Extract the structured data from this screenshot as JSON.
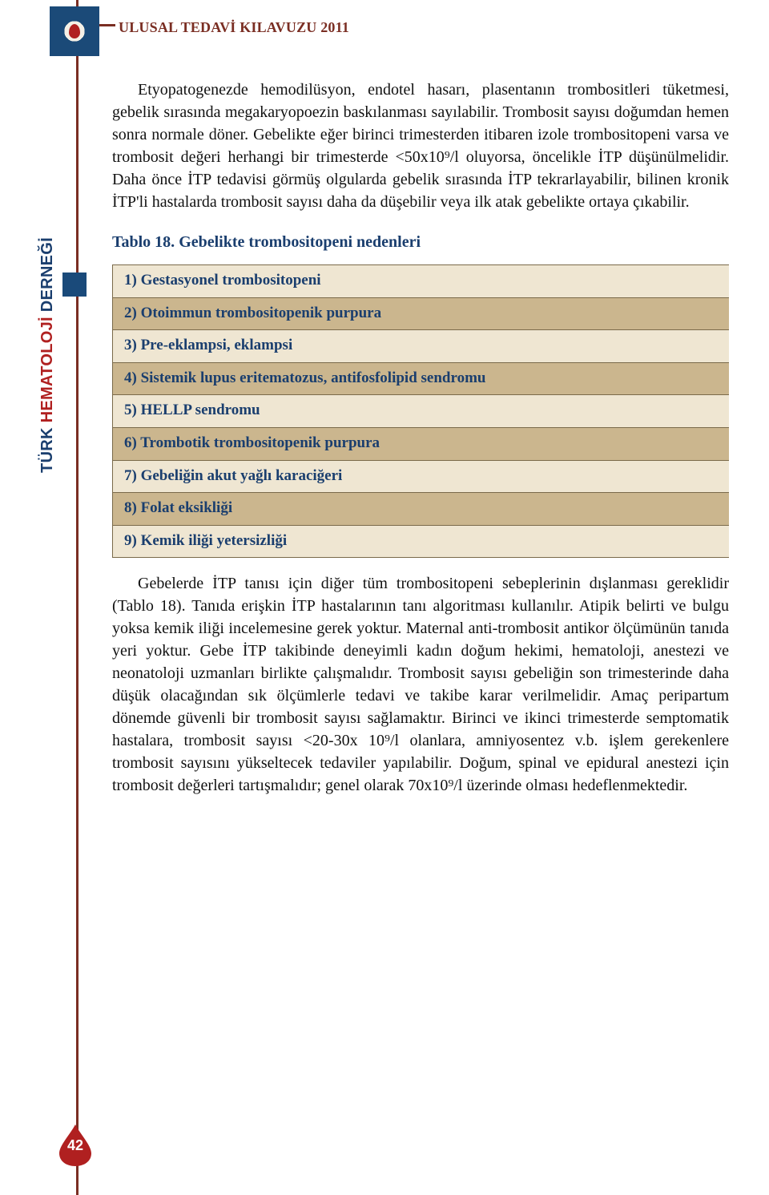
{
  "header": {
    "title": "ULUSAL TEDAVİ KILAVUZU 2011"
  },
  "sidebar": {
    "label_turk": "TÜRK ",
    "label_hema": "HEMATOLOJİ ",
    "label_dern": "DERNEĞİ"
  },
  "colors": {
    "brand_line": "#7a2e23",
    "text": "#111111",
    "blue": "#1a3e6e",
    "red": "#b02020",
    "table_border": "#7a6a4a",
    "row_light": "#efe6d2",
    "row_dark": "#cbb68e",
    "page_white": "#ffffff"
  },
  "fonts": {
    "body_family": "Georgia, 'Times New Roman', serif",
    "body_size_pt": 15,
    "header_size_pt": 14,
    "sidebar_size_pt": 15,
    "table_size_pt": 14
  },
  "body": {
    "para1": "Etyopatogenezde hemodilüsyon, endotel hasarı, plasentanın trombositleri tüketmesi, gebelik sırasında megakaryopoezin baskılanması sayılabilir. Trombosit sayısı doğumdan hemen sonra normale döner. Gebelikte eğer birinci trimesterden itibaren izole trombositopeni varsa ve trombosit değeri herhangi bir trimesterde <50x10⁹/l oluyorsa, öncelikle İTP düşünülmelidir. Daha önce İTP tedavisi görmüş olgularda gebelik sırasında İTP tekrarlayabilir, bilinen kronik İTP'li hastalarda trombosit sayısı daha da düşebilir veya ilk atak gebelikte ortaya çıkabilir.",
    "para2": "Gebelerde İTP tanısı için diğer tüm trombositopeni sebeplerinin dışlanması gereklidir (Tablo 18). Tanıda erişkin İTP hastalarının tanı algoritması kullanılır. Atipik belirti ve bulgu yoksa kemik iliği incelemesine gerek yoktur. Maternal anti-trombosit antikor ölçümünün tanıda yeri yoktur. Gebe İTP takibinde deneyimli kadın doğum hekimi, hematoloji, anestezi ve neonatoloji uzmanları birlikte çalışmalıdır. Trombosit sayısı gebeliğin son trimesterinde daha düşük olacağından sık ölçümlerle tedavi ve takibe karar verilmelidir. Amaç peripartum dönemde güvenli bir trombosit sayısı sağlamaktır. Birinci ve ikinci trimesterde semptomatik hastalara, trombosit sayısı <20-30x 10⁹/l olanlara, amniyosentez v.b. işlem gerekenlere trombosit sayısını yükseltecek tedaviler yapılabilir. Doğum, spinal ve epidural anestezi için trombosit değerleri tartışmalıdır; genel olarak 70x10⁹/l üzerinde olması hedeflenmektedir."
  },
  "table18": {
    "title_prefix": "Tablo 18.",
    "title_rest": " Gebelikte trombositopeni nedenleri",
    "rows": [
      "1) Gestasyonel trombositopeni",
      "2) Otoimmun trombositopenik purpura",
      "3) Pre-eklampsi, eklampsi",
      "4) Sistemik lupus eritematozus, antifosfolipid sendromu",
      "5) HELLP sendromu",
      "6) Trombotik trombositopenik purpura",
      "7) Gebeliğin akut yağlı karaciğeri",
      "8) Folat eksikliği",
      "9) Kemik iliği yetersizliği"
    ],
    "row_styles": [
      "light",
      "dark",
      "light",
      "dark",
      "light",
      "dark",
      "light",
      "dark",
      "light"
    ]
  },
  "page_number": "42"
}
